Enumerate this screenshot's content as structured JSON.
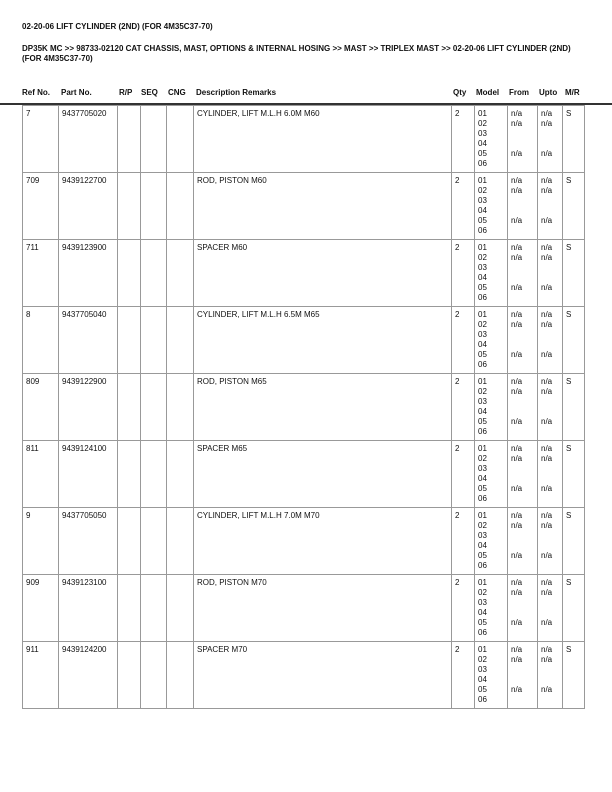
{
  "title": "02-20-06 LIFT CYLINDER (2ND) (FOR 4M35C37-70)",
  "breadcrumb": "DP35K MC >> 98733-02120 CAT CHASSIS, MAST, OPTIONS & INTERNAL HOSING >> MAST >> TRIPLEX MAST >> 02-20-06 LIFT CYLINDER (2ND) (FOR 4M35C37-70)",
  "headers": {
    "ref": "Ref No.",
    "part": "Part No.",
    "rp": "R/P",
    "seq": "SEQ",
    "cng": "CNG",
    "desc": "Description Remarks",
    "qty": "Qty",
    "model": "Model",
    "from": "From",
    "upto": "Upto",
    "mr": "M/R"
  },
  "models": [
    "01",
    "02",
    "03",
    "04",
    "05",
    "06"
  ],
  "from": [
    "n/a",
    "n/a",
    "",
    "",
    "n/a",
    ""
  ],
  "upto": [
    "n/a",
    "n/a",
    "",
    "",
    "n/a",
    ""
  ],
  "rows": [
    {
      "ref": "7",
      "part": "9437705020",
      "desc": "CYLINDER, LIFT M.L.H 6.0M M60",
      "qty": "2",
      "mr": "S"
    },
    {
      "ref": "709",
      "part": "9439122700",
      "desc": "ROD, PISTON M60",
      "qty": "2",
      "mr": "S"
    },
    {
      "ref": "711",
      "part": "9439123900",
      "desc": "SPACER M60",
      "qty": "2",
      "mr": "S"
    },
    {
      "ref": "8",
      "part": "9437705040",
      "desc": "CYLINDER, LIFT M.L.H 6.5M M65",
      "qty": "2",
      "mr": "S"
    },
    {
      "ref": "809",
      "part": "9439122900",
      "desc": "ROD, PISTON M65",
      "qty": "2",
      "mr": "S"
    },
    {
      "ref": "811",
      "part": "9439124100",
      "desc": "SPACER M65",
      "qty": "2",
      "mr": "S"
    },
    {
      "ref": "9",
      "part": "9437705050",
      "desc": "CYLINDER, LIFT M.L.H 7.0M M70",
      "qty": "2",
      "mr": "S"
    },
    {
      "ref": "909",
      "part": "9439123100",
      "desc": "ROD, PISTON M70",
      "qty": "2",
      "mr": "S"
    },
    {
      "ref": "911",
      "part": "9439124200",
      "desc": "SPACER M70",
      "qty": "2",
      "mr": "S"
    }
  ]
}
